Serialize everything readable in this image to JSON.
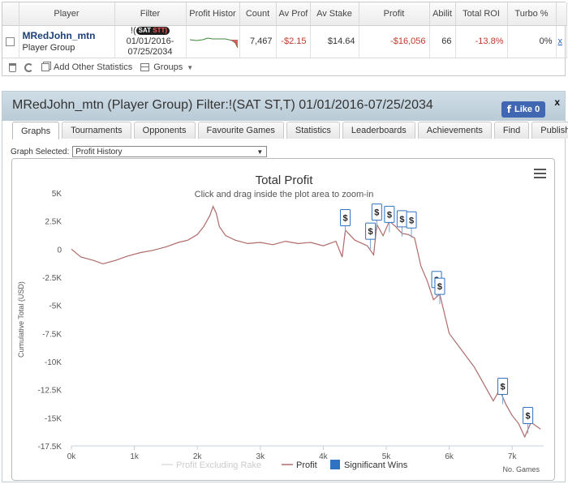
{
  "stats": {
    "headers": [
      "Player",
      "Filter",
      "Profit Histor",
      "Count",
      "Av Prof",
      "Av Stake",
      "Profit",
      "Abilit",
      "Total ROI",
      "Turbo %"
    ],
    "row": {
      "player_name": "MRedJohn_mtn",
      "player_type": "Player Group",
      "filter_prefix": "!(",
      "filter_badge_a": "SAT",
      "filter_badge_b": "ST",
      "filter_badge_c": "T)",
      "filter_date_1": "01/01/2016-",
      "filter_date_2": "07/25/2034",
      "count": "7,467",
      "av_profit": "-$2.15",
      "av_stake": "$14.64",
      "profit": "-$16,056",
      "ability": "66",
      "total_roi": "-13.8%",
      "turbo": "0%",
      "remove": "x"
    },
    "toolbar": {
      "add_stats": "Add Other Statistics",
      "groups": "Groups"
    }
  },
  "main": {
    "title": "MRedJohn_mtn (Player Group) Filter:!(SAT ST,T) 01/01/2016-07/25/2034",
    "like_label": "Like 0",
    "close": "x",
    "tabs": [
      "Graphs",
      "Tournaments",
      "Opponents",
      "Favourite Games",
      "Statistics",
      "Leaderboards",
      "Achievements",
      "Find",
      "Publish"
    ],
    "active_tab": 0,
    "graph_select_label": "Graph Selected:",
    "graph_select_value": "Profit History"
  },
  "chart_data": {
    "type": "line",
    "title": "Total Profit",
    "subtitle": "Click and drag inside the plot area to zoom-in",
    "ylabel": "Cumulative Total (USD)",
    "xlabel": "No. Games",
    "xlim": [
      0,
      7500
    ],
    "ylim": [
      -17500,
      5000
    ],
    "x_ticks": [
      "0k",
      "1k",
      "2k",
      "3k",
      "4k",
      "5k",
      "6k",
      "7k"
    ],
    "y_ticks": [
      "5K",
      "2.5K",
      "0",
      "-2.5K",
      "-5K",
      "-7.5K",
      "-10K",
      "-12.5K",
      "-15K",
      "-17.5K"
    ],
    "grid": false,
    "legend_position": "bottom",
    "legend": [
      "Profit Excluding Rake",
      "Profit",
      "Significant Wins"
    ],
    "colors": {
      "profit": "#b06a6a",
      "excl_rake": "#dddddd",
      "significant": "#2f72c4"
    },
    "series": [
      {
        "name": "Profit",
        "points": [
          [
            0,
            0
          ],
          [
            150,
            -700
          ],
          [
            350,
            -1000
          ],
          [
            500,
            -1300
          ],
          [
            700,
            -1000
          ],
          [
            900,
            -600
          ],
          [
            1100,
            -300
          ],
          [
            1300,
            -100
          ],
          [
            1500,
            200
          ],
          [
            1700,
            600
          ],
          [
            1850,
            800
          ],
          [
            2000,
            1300
          ],
          [
            2100,
            2000
          ],
          [
            2200,
            3000
          ],
          [
            2250,
            3800
          ],
          [
            2300,
            3200
          ],
          [
            2350,
            2000
          ],
          [
            2450,
            1200
          ],
          [
            2600,
            800
          ],
          [
            2800,
            500
          ],
          [
            3000,
            600
          ],
          [
            3200,
            400
          ],
          [
            3400,
            700
          ],
          [
            3600,
            500
          ],
          [
            3800,
            600
          ],
          [
            4000,
            300
          ],
          [
            4200,
            700
          ],
          [
            4300,
            -700
          ],
          [
            4350,
            1700
          ],
          [
            4500,
            800
          ],
          [
            4700,
            300
          ],
          [
            4800,
            -500
          ],
          [
            4850,
            2200
          ],
          [
            4950,
            1200
          ],
          [
            5050,
            2500
          ],
          [
            5150,
            2000
          ],
          [
            5250,
            1400
          ],
          [
            5350,
            1300
          ],
          [
            5450,
            1000
          ],
          [
            5550,
            -1500
          ],
          [
            5650,
            -2800
          ],
          [
            5750,
            -4500
          ],
          [
            5850,
            -4000
          ],
          [
            6000,
            -7500
          ],
          [
            6200,
            -9000
          ],
          [
            6400,
            -10500
          ],
          [
            6550,
            -12000
          ],
          [
            6700,
            -13500
          ],
          [
            6800,
            -12500
          ],
          [
            6900,
            -13800
          ],
          [
            7000,
            -14800
          ],
          [
            7100,
            -15500
          ],
          [
            7200,
            -16700
          ],
          [
            7300,
            -15400
          ],
          [
            7450,
            -16000
          ]
        ]
      }
    ],
    "significant_wins": [
      {
        "x": 4350,
        "y": 2800,
        "label": "$"
      },
      {
        "x": 4750,
        "y": 1600,
        "label": "$"
      },
      {
        "x": 4850,
        "y": 3300,
        "label": "$"
      },
      {
        "x": 5050,
        "y": 3100,
        "label": "$"
      },
      {
        "x": 5250,
        "y": 2700,
        "label": "$"
      },
      {
        "x": 5400,
        "y": 2600,
        "label": "$"
      },
      {
        "x": 5800,
        "y": -2700,
        "label": "$"
      },
      {
        "x": 5850,
        "y": -3300,
        "label": "$"
      },
      {
        "x": 6850,
        "y": -12200,
        "label": "$"
      },
      {
        "x": 7250,
        "y": -14800,
        "label": "$"
      }
    ]
  }
}
